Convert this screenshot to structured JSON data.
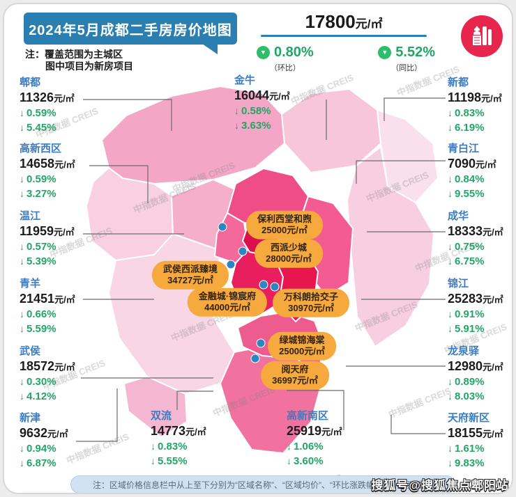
{
  "header": {
    "title": "2024年5月成都二手房房价地图",
    "note_prefix": "注：",
    "note_line1": "覆盖范围为主城区",
    "note_line2": "图中项目为新房项目",
    "avg_price": "17800",
    "avg_price_unit": "元/㎡",
    "stats": [
      {
        "value": "0.80%",
        "label": "（环比）"
      },
      {
        "value": "5.52%",
        "label": "（同比）"
      }
    ]
  },
  "icons": {
    "down_triangle": "▼",
    "down_arrow": "↓",
    "logo": "city-buildings-icon"
  },
  "districts": [
    {
      "name": "郫都",
      "price": "11326",
      "unit": "元/㎡",
      "mom": "0.59%",
      "yoy": "5.45%"
    },
    {
      "name": "高新西区",
      "price": "14658",
      "unit": "元/㎡",
      "mom": "0.59%",
      "yoy": "3.27%"
    },
    {
      "name": "温江",
      "price": "11959",
      "unit": "元/㎡",
      "mom": "0.57%",
      "yoy": "5.39%"
    },
    {
      "name": "青羊",
      "price": "21451",
      "unit": "元/㎡",
      "mom": "0.66%",
      "yoy": "5.59%"
    },
    {
      "name": "武侯",
      "price": "18572",
      "unit": "元/㎡",
      "mom": "0.30%",
      "yoy": "4.12%"
    },
    {
      "name": "新津",
      "price": "9632",
      "unit": "元/㎡",
      "mom": "0.94%",
      "yoy": "6.87%"
    },
    {
      "name": "金牛",
      "price": "16044",
      "unit": "元/㎡",
      "mom": "0.58%",
      "yoy": "3.63%"
    },
    {
      "name": "新都",
      "price": "11198",
      "unit": "元/㎡",
      "mom": "0.83%",
      "yoy": "6.19%"
    },
    {
      "name": "青白江",
      "price": "7090",
      "unit": "元/㎡",
      "mom": "0.84%",
      "yoy": "9.55%"
    },
    {
      "name": "成华",
      "price": "18333",
      "unit": "元/㎡",
      "mom": "0.75%",
      "yoy": "6.75%"
    },
    {
      "name": "锦江",
      "price": "25283",
      "unit": "元/㎡",
      "mom": "0.91%",
      "yoy": "5.91%"
    },
    {
      "name": "龙泉驿",
      "price": "12980",
      "unit": "元/㎡",
      "mom": "0.89%",
      "yoy": "8.03%"
    },
    {
      "name": "天府新区",
      "price": "18155",
      "unit": "元/㎡",
      "mom": "1.61%",
      "yoy": "9.83%"
    },
    {
      "name": "双流",
      "price": "14773",
      "unit": "元/㎡",
      "mom": "0.83%",
      "yoy": "5.55%"
    },
    {
      "name": "高新南区",
      "price": "25919",
      "unit": "元/㎡",
      "mom": "1.06%",
      "yoy": "3.60%"
    }
  ],
  "projects": [
    {
      "name": "保利西堂和煦",
      "price": "25000元/㎡"
    },
    {
      "name": "西派少城",
      "price": "28000元/㎡"
    },
    {
      "name": "武侯西派臻境",
      "price": "34727元/㎡"
    },
    {
      "name": "金融城·锦宸府",
      "price": "44000元/㎡"
    },
    {
      "name": "万科朗拾交子",
      "price": "30970元/㎡"
    },
    {
      "name": "绿城锦海棠",
      "price": "25000元/㎡"
    },
    {
      "name": "阅天府",
      "price": "36997元/㎡"
    }
  ],
  "footer": {
    "note": "注：区域价格信息栏中从上至下分别为“区域名称”、“区域均价”、“环比涨跌幅”和“同比涨跌幅”"
  },
  "watermarks": {
    "data_source": "中指数据 CREIS",
    "sohu": "搜狐号@搜狐焦点郫阳站"
  },
  "colors": {
    "banner_blue": "#2b7fb0",
    "district_blue": "#3d7cc0",
    "change_green": "#22a567",
    "logo_pink": "#e7254d",
    "pill_orange": "#f6a93c",
    "marker_blue": "#2e86c1"
  }
}
